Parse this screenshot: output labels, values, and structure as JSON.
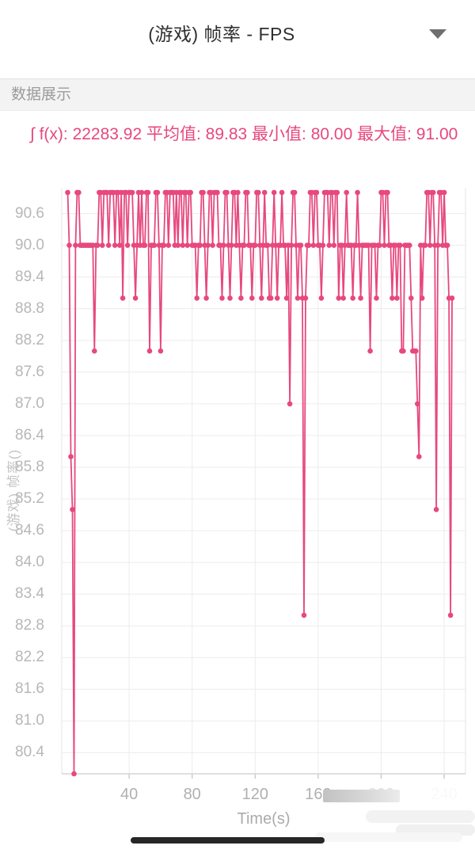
{
  "header": {
    "title": "(游戏) 帧率 - FPS",
    "dropdown_icon": "caret-down"
  },
  "section": {
    "label": "数据展示"
  },
  "stats": {
    "text": "∫ f(x): 22283.92 平均值: 89.83 最小值: 80.00 最大值: 91.00",
    "integral_label": "∫ f(x):",
    "integral": "22283.92",
    "mean_label": "平均值:",
    "mean": "89.83",
    "min_label": "最小值:",
    "min": "80.00",
    "max_label": "最大值:",
    "max": "91.00"
  },
  "colors": {
    "accent_pink": "#e7487e",
    "axis_text": "#b7b7b7",
    "grid": "#ececec",
    "axis_line": "#d6d6d6"
  },
  "chart_data": {
    "type": "line",
    "title": "(游戏) 帧率 - FPS",
    "xlabel": "Time(s)",
    "ylabel": "(游戏) 帧率()",
    "grid": true,
    "legend": false,
    "line_color": "#e7487e",
    "marker": "circle",
    "ylim": [
      79.85,
      91.15
    ],
    "y_tick_step": 0.6,
    "y_ticks": [
      "90.6",
      "90.0",
      "89.4",
      "88.8",
      "88.2",
      "87.6",
      "87.0",
      "86.4",
      "85.8",
      "85.2",
      "84.6",
      "84.0",
      "83.4",
      "82.8",
      "82.2",
      "81.6",
      "81.0",
      "80.4"
    ],
    "x_ticks": [
      {
        "label": "40",
        "smudged": false
      },
      {
        "label": "80",
        "smudged": false
      },
      {
        "label": "120",
        "smudged": false
      },
      {
        "label": "160",
        "smudged": false
      },
      {
        "label": "200",
        "smudged": true
      },
      {
        "label": "240",
        "smudged": true
      }
    ],
    "stats": {
      "integral": 22283.92,
      "mean": 89.83,
      "min": 80.0,
      "max": 91.0
    },
    "series": [
      {
        "name": "(游戏) 帧率",
        "x_start": 1,
        "x_step_s": 1,
        "values": [
          91,
          90,
          86,
          85,
          80,
          90,
          91,
          91,
          90,
          90,
          90,
          90,
          90,
          90,
          90,
          90,
          90,
          88,
          90,
          90,
          91,
          91,
          90,
          91,
          91,
          91,
          90,
          91,
          91,
          91,
          90,
          91,
          91,
          90,
          91,
          89,
          91,
          91,
          90,
          91,
          91,
          91,
          90,
          89,
          90,
          91,
          90,
          91,
          90,
          90,
          91,
          91,
          88,
          90,
          90,
          90,
          91,
          91,
          90,
          88,
          90,
          90,
          91,
          91,
          90,
          91,
          91,
          91,
          90,
          91,
          90,
          91,
          91,
          90,
          91,
          91,
          90,
          91,
          91,
          90,
          90,
          90,
          89,
          90,
          90,
          91,
          91,
          90,
          89,
          90,
          91,
          91,
          90,
          91,
          91,
          91,
          90,
          90,
          89,
          90,
          91,
          91,
          90,
          89,
          90,
          91,
          91,
          90,
          91,
          90,
          89,
          90,
          90,
          91,
          91,
          90,
          90,
          89,
          90,
          90,
          91,
          91,
          90,
          89,
          90,
          91,
          90,
          90,
          89,
          89,
          90,
          91,
          90,
          89,
          90,
          90,
          91,
          90,
          90,
          89,
          90,
          87,
          90,
          91,
          91,
          90,
          89,
          90,
          90,
          89,
          83,
          89,
          90,
          90,
          91,
          91,
          90,
          91,
          91,
          90,
          90,
          89,
          90,
          91,
          91,
          91,
          90,
          91,
          91,
          90,
          91,
          91,
          89,
          90,
          90,
          89,
          90,
          91,
          90,
          90,
          90,
          89,
          90,
          90,
          91,
          90,
          89,
          90,
          90,
          90,
          90,
          90,
          88,
          90,
          90,
          90,
          89,
          90,
          90,
          91,
          91,
          90,
          91,
          91,
          90,
          90,
          89,
          90,
          90,
          89,
          90,
          90,
          88,
          88,
          90,
          90,
          90,
          90,
          89,
          88,
          88,
          88,
          87,
          86,
          90,
          89,
          90,
          90,
          91,
          91,
          90,
          91,
          91,
          90,
          85,
          90,
          91,
          91,
          90,
          91,
          90,
          90,
          89,
          83,
          89
        ]
      }
    ]
  }
}
